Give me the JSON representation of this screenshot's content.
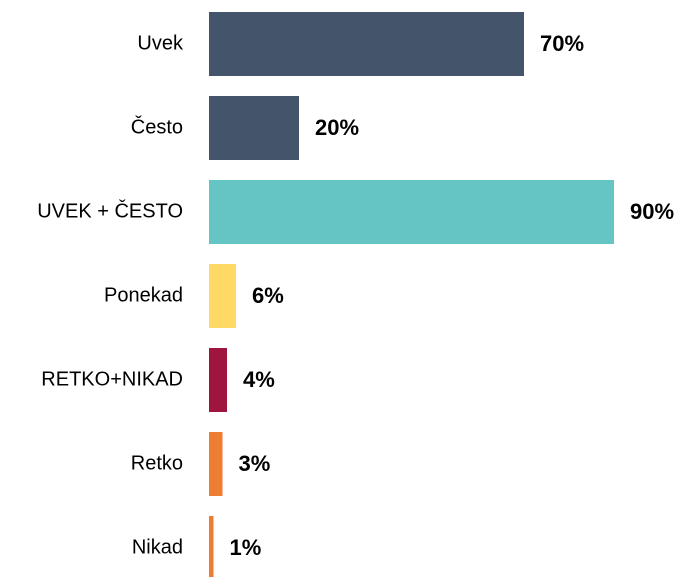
{
  "chart_data": {
    "type": "bar",
    "categories": [
      "Uvek",
      "Često",
      "UVEK + ČESTO",
      "Ponekad",
      "RETKO+NIKAD",
      "Retko",
      "Nikad"
    ],
    "values": [
      70,
      20,
      90,
      6,
      4,
      3,
      1
    ],
    "value_labels": [
      "70%",
      "20%",
      "90%",
      "6%",
      "4%",
      "3%",
      "1%"
    ],
    "colors": [
      "#44546a",
      "#44546a",
      "#65c5c4",
      "#ffd966",
      "#a0153e",
      "#ed7d31",
      "#ed7d31"
    ]
  }
}
